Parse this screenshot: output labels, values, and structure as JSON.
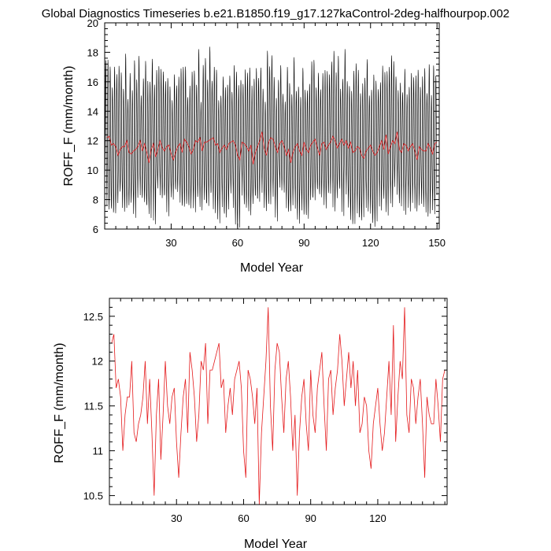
{
  "title": "Global Diagnostics Timeseries b.e21.B1850.f19_g17.127kaControl-2deg-halfhourpop.002",
  "colors": {
    "monthly": "#000000",
    "annual": "#e41a1c",
    "axis": "#000000",
    "background": "#ffffff"
  },
  "chart_data": [
    {
      "type": "line",
      "xlabel": "Model Year",
      "ylabel": "ROFF_F (mm/month)",
      "xlim": [
        0,
        151
      ],
      "ylim": [
        6,
        20
      ],
      "xticks": [
        30,
        60,
        90,
        120,
        150
      ],
      "yticks": [
        6,
        8,
        10,
        12,
        14,
        16,
        18,
        20
      ],
      "grid": false,
      "monthly_envelope": {
        "max_range": [
          15.5,
          18.7
        ],
        "min_range": [
          6.7,
          9.5
        ]
      },
      "series": [
        {
          "values": [
            12.2,
            12.3,
            11.7,
            11.8,
            11.6,
            11.0,
            11.4,
            11.6,
            11.6,
            12.0,
            11.2,
            11.1,
            11.3,
            11.4,
            11.6,
            12.0,
            11.3,
            11.8,
            11.2,
            10.5,
            11.4,
            11.8,
            10.9,
            11.4,
            12.0,
            11.5,
            11.3,
            11.6,
            11.7,
            11.1,
            10.7,
            11.2,
            11.6,
            11.8,
            11.2,
            12.1,
            11.9,
            11.6,
            11.1,
            11.4,
            12.0,
            11.9,
            12.2,
            11.3,
            11.9,
            11.9,
            12.0,
            12.1,
            12.2,
            11.7,
            11.8,
            11.2,
            11.5,
            11.7,
            11.4,
            11.8,
            11.9,
            12.0,
            11.7,
            11.0,
            10.7,
            11.9,
            11.8,
            11.6,
            11.3,
            11.7,
            10.4,
            11.2,
            11.6,
            12.0,
            12.6,
            11.5,
            11.0,
            11.9,
            12.2,
            12.1,
            11.6,
            11.2,
            11.8,
            12.0,
            11.6,
            11.0,
            11.4,
            10.5,
            11.2,
            11.6,
            11.8,
            11.3,
            11.0,
            11.9,
            11.4,
            11.2,
            11.7,
            11.9,
            12.1,
            11.5,
            11.0,
            11.8,
            11.9,
            11.4,
            11.7,
            11.9,
            12.3,
            12.0,
            11.5,
            11.8,
            12.1,
            11.7,
            12.0,
            11.5,
            11.9,
            11.2,
            11.3,
            11.6,
            11.5,
            11.0,
            10.8,
            11.3,
            11.5,
            11.7,
            11.3,
            11.0,
            11.2,
            11.6,
            12.0,
            11.4,
            12.4,
            11.1,
            11.6,
            12.0,
            11.8,
            12.6,
            11.4,
            11.2,
            11.8,
            11.7,
            11.3,
            11.6,
            11.8,
            11.3,
            10.7,
            11.6,
            11.4,
            11.3,
            11.3,
            11.8,
            11.5,
            11.1,
            11.8,
            11.9
          ]
        }
      ]
    },
    {
      "type": "line",
      "xlabel": "Model Year",
      "ylabel": "ROFF_F (mm/month)",
      "xlim": [
        0,
        151
      ],
      "ylim": [
        10.4,
        12.7
      ],
      "xticks": [
        30,
        60,
        90,
        120
      ],
      "yticks": [
        10.5,
        11.0,
        11.5,
        12.0,
        12.5
      ],
      "grid": false,
      "series": [
        {
          "values": [
            12.2,
            12.3,
            11.7,
            11.8,
            11.6,
            11.0,
            11.4,
            11.6,
            11.6,
            12.0,
            11.2,
            11.1,
            11.3,
            11.4,
            11.6,
            12.0,
            11.3,
            11.8,
            11.2,
            10.5,
            11.4,
            11.8,
            10.9,
            11.4,
            12.0,
            11.5,
            11.3,
            11.6,
            11.7,
            11.1,
            10.7,
            11.2,
            11.6,
            11.8,
            11.2,
            12.1,
            11.9,
            11.6,
            11.1,
            11.4,
            12.0,
            11.9,
            12.2,
            11.3,
            11.9,
            11.9,
            12.0,
            12.1,
            12.2,
            11.7,
            11.8,
            11.2,
            11.5,
            11.7,
            11.4,
            11.8,
            11.9,
            12.0,
            11.7,
            11.0,
            10.7,
            11.9,
            11.8,
            11.6,
            11.3,
            11.7,
            10.4,
            11.2,
            11.6,
            12.0,
            12.6,
            11.5,
            11.0,
            11.9,
            12.2,
            12.1,
            11.6,
            11.2,
            11.8,
            12.0,
            11.6,
            11.0,
            11.4,
            10.5,
            11.2,
            11.6,
            11.8,
            11.3,
            11.0,
            11.9,
            11.4,
            11.2,
            11.7,
            11.9,
            12.1,
            11.5,
            11.0,
            11.8,
            11.9,
            11.4,
            11.7,
            11.9,
            12.3,
            12.0,
            11.5,
            11.8,
            12.1,
            11.7,
            12.0,
            11.5,
            11.9,
            11.2,
            11.3,
            11.6,
            11.5,
            11.0,
            10.8,
            11.3,
            11.5,
            11.7,
            11.3,
            11.0,
            11.2,
            11.6,
            12.0,
            11.4,
            12.4,
            11.1,
            11.6,
            12.0,
            11.8,
            12.6,
            11.4,
            11.2,
            11.8,
            11.7,
            11.3,
            11.6,
            11.8,
            11.3,
            10.7,
            11.6,
            11.4,
            11.3,
            11.3,
            11.8,
            11.5,
            11.1,
            11.8,
            11.9
          ]
        }
      ]
    }
  ]
}
